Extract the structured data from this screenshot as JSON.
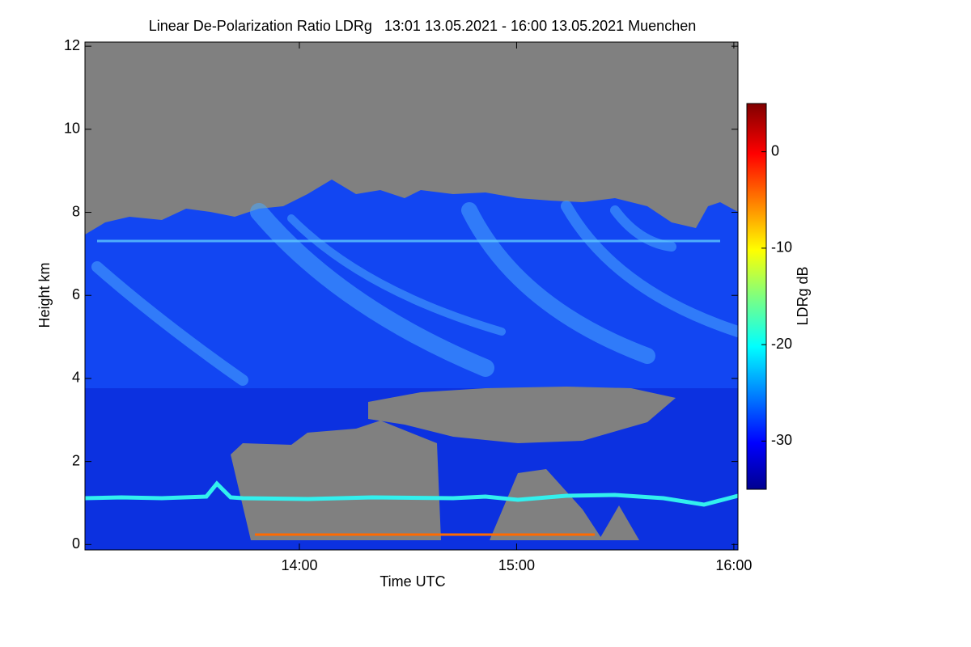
{
  "chart_data": {
    "type": "heatmap",
    "title": "Linear De-Polarization Ratio LDRg   13:01 13.05.2021 - 16:00 13.05.2021 Muenchen",
    "x_label": "Time UTC",
    "y_label": "Height km",
    "colorbar_label": "LDRg dB",
    "xlim": [
      13.013,
      16.019
    ],
    "xticks": [
      {
        "value": 14,
        "label": "14:00"
      },
      {
        "value": 15,
        "label": "15:00"
      },
      {
        "value": 16,
        "label": "16:00"
      }
    ],
    "ylim": [
      -0.13,
      12.1
    ],
    "yticks": [
      0,
      2,
      4,
      6,
      8,
      10,
      12
    ],
    "clim": [
      -35,
      5
    ],
    "cticks": [
      0,
      -10,
      -20,
      -30
    ]
  }
}
